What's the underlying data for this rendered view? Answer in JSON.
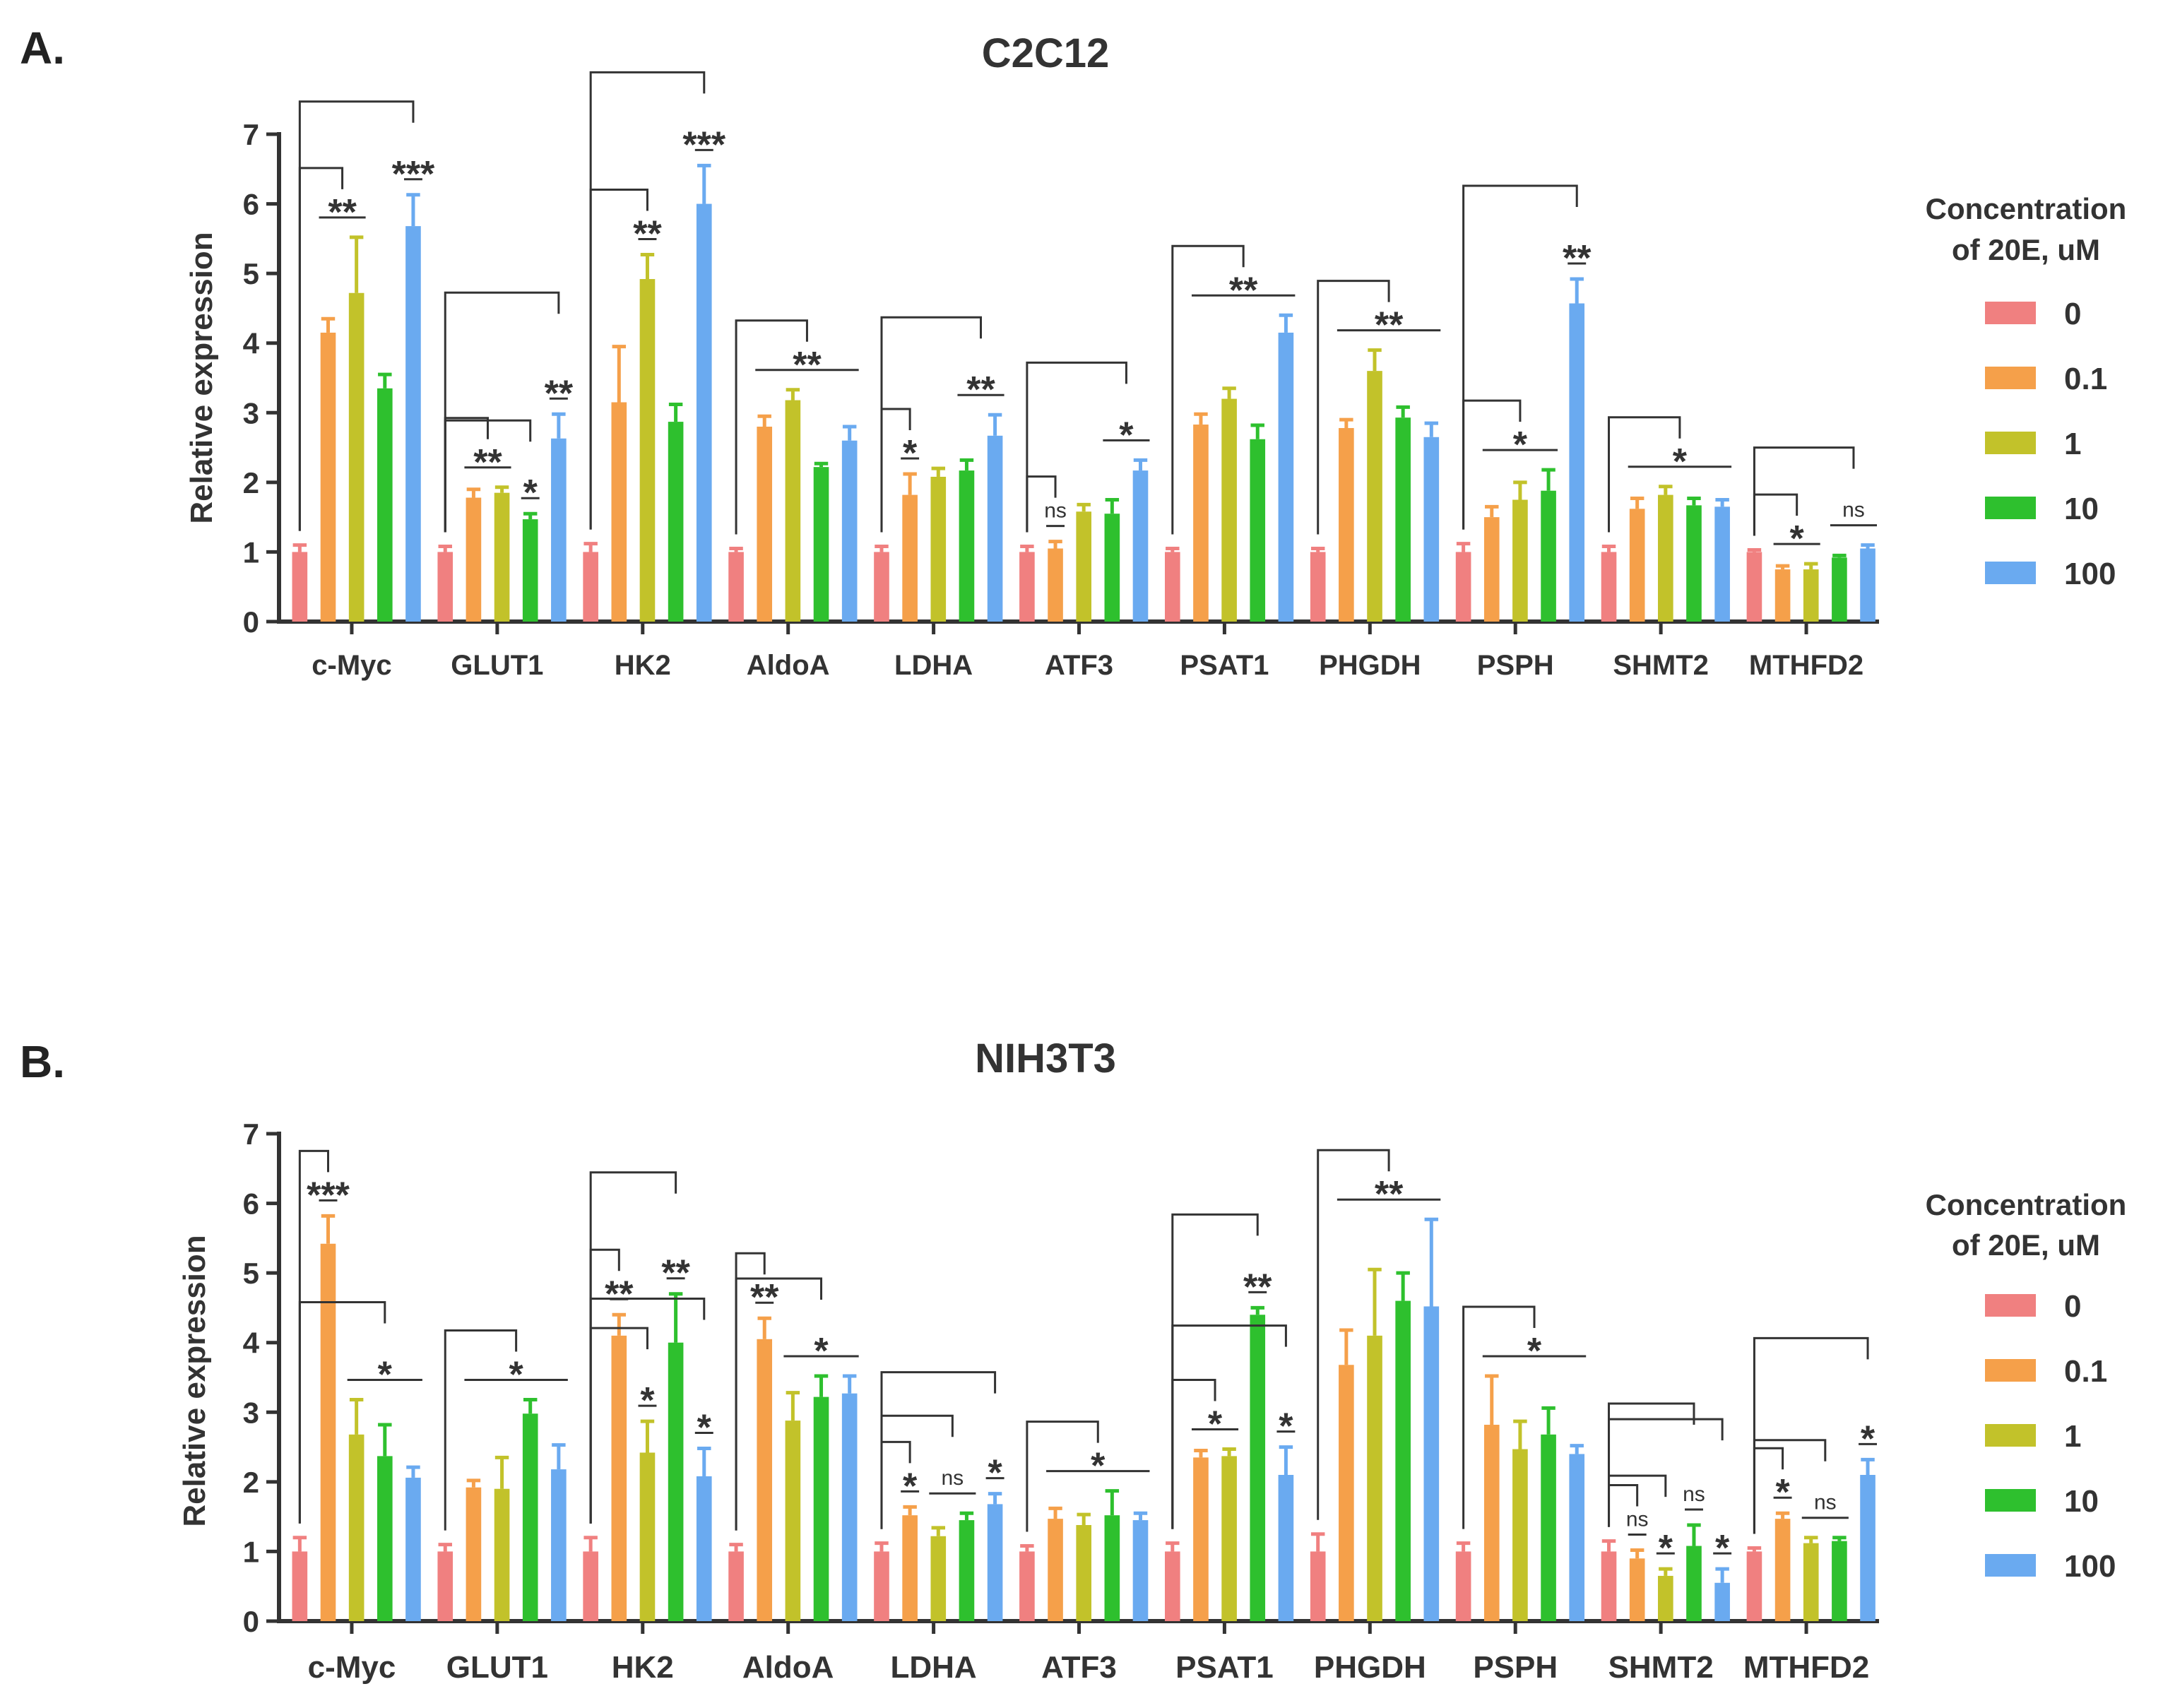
{
  "chart_data": [
    {
      "panel_label": "A.",
      "type": "bar",
      "title": "C2C12",
      "ylabel": "Relative expression",
      "xlabel": "",
      "ylim": [
        0,
        7
      ],
      "yticks": [
        "0",
        "1",
        "2",
        "3",
        "4",
        "5",
        "6",
        "7"
      ],
      "categories": [
        "c-Myc",
        "GLUT1",
        "HK2",
        "AldoA",
        "LDHA",
        "ATF3",
        "PSAT1",
        "PHGDH",
        "PSPH",
        "SHMT2",
        "MTHFD2"
      ],
      "legend": {
        "title_line1": "Concentration",
        "title_line2": "of 20E, uM",
        "placement": "right",
        "entries": [
          "0",
          "0.1",
          "1",
          "10",
          "100"
        ]
      },
      "series": [
        {
          "name": "0",
          "values": [
            1,
            1,
            1,
            1,
            1,
            1,
            1,
            1,
            1,
            1,
            1
          ],
          "errors": [
            0.1,
            0.08,
            0.12,
            0.05,
            0.08,
            0.08,
            0.05,
            0.05,
            0.12,
            0.08,
            0.03
          ]
        },
        {
          "name": "0.1",
          "values": [
            4.15,
            1.78,
            3.15,
            2.8,
            1.82,
            1.05,
            2.83,
            2.78,
            1.5,
            1.62,
            0.75
          ],
          "errors": [
            0.2,
            0.12,
            0.8,
            0.15,
            0.3,
            0.1,
            0.15,
            0.12,
            0.15,
            0.15,
            0.05
          ]
        },
        {
          "name": "1",
          "values": [
            4.72,
            1.85,
            4.92,
            3.18,
            2.08,
            1.58,
            3.2,
            3.6,
            1.75,
            1.82,
            0.75
          ],
          "errors": [
            0.8,
            0.08,
            0.35,
            0.15,
            0.12,
            0.1,
            0.15,
            0.3,
            0.25,
            0.12,
            0.08
          ]
        },
        {
          "name": "10",
          "values": [
            3.35,
            1.47,
            2.87,
            2.22,
            2.17,
            1.55,
            2.62,
            2.93,
            1.88,
            1.67,
            0.92
          ],
          "errors": [
            0.2,
            0.08,
            0.25,
            0.05,
            0.15,
            0.2,
            0.2,
            0.15,
            0.3,
            0.1,
            0.03
          ]
        },
        {
          "name": "100",
          "values": [
            5.68,
            2.63,
            6.0,
            2.6,
            2.67,
            2.17,
            4.15,
            2.65,
            4.57,
            1.65,
            1.05
          ],
          "errors": [
            0.45,
            0.35,
            0.55,
            0.2,
            0.3,
            0.15,
            0.25,
            0.2,
            0.35,
            0.1,
            0.05
          ]
        }
      ],
      "annotations": [
        {
          "category": "c-Myc",
          "label": "**",
          "compare": "0.1/1"
        },
        {
          "category": "c-Myc",
          "label": "***",
          "compare": "100"
        },
        {
          "category": "GLUT1",
          "label": "**",
          "compare": "0.1/1"
        },
        {
          "category": "GLUT1",
          "label": "*",
          "compare": "10"
        },
        {
          "category": "GLUT1",
          "label": "**",
          "compare": "100"
        },
        {
          "category": "HK2",
          "label": "**",
          "compare": "1"
        },
        {
          "category": "HK2",
          "label": "***",
          "compare": "100"
        },
        {
          "category": "AldoA",
          "label": "**",
          "compare": "all"
        },
        {
          "category": "LDHA",
          "label": "*",
          "compare": "0.1"
        },
        {
          "category": "LDHA",
          "label": "**",
          "compare": "10/100"
        },
        {
          "category": "ATF3",
          "label": "ns",
          "compare": "0.1"
        },
        {
          "category": "ATF3",
          "label": "*",
          "compare": "10/100"
        },
        {
          "category": "PSAT1",
          "label": "**",
          "compare": "all"
        },
        {
          "category": "PHGDH",
          "label": "**",
          "compare": "all"
        },
        {
          "category": "PSPH",
          "label": "*",
          "compare": "0.1-10"
        },
        {
          "category": "PSPH",
          "label": "**",
          "compare": "100"
        },
        {
          "category": "SHMT2",
          "label": "*",
          "compare": "all"
        },
        {
          "category": "MTHFD2",
          "label": "*",
          "compare": "0.1/1"
        },
        {
          "category": "MTHFD2",
          "label": "ns",
          "compare": "10/100"
        }
      ]
    },
    {
      "panel_label": "B.",
      "type": "bar",
      "title": "NIH3T3",
      "ylabel": "Relative expression",
      "xlabel": "",
      "ylim": [
        0,
        7
      ],
      "yticks": [
        "0",
        "1",
        "2",
        "3",
        "4",
        "5",
        "6",
        "7"
      ],
      "categories": [
        "c-Myc",
        "GLUT1",
        "HK2",
        "AldoA",
        "LDHA",
        "ATF3",
        "PSAT1",
        "PHGDH",
        "PSPH",
        "SHMT2",
        "MTHFD2"
      ],
      "legend": {
        "title_line1": "Concentration",
        "title_line2": "of 20E, uM",
        "placement": "right",
        "entries": [
          "0",
          "0.1",
          "1",
          "10",
          "100"
        ]
      },
      "series": [
        {
          "name": "0",
          "values": [
            1,
            1,
            1,
            1,
            1,
            1,
            1,
            1,
            1,
            1,
            1
          ],
          "errors": [
            0.2,
            0.1,
            0.2,
            0.1,
            0.12,
            0.08,
            0.12,
            0.25,
            0.12,
            0.15,
            0.05
          ]
        },
        {
          "name": "0.1",
          "values": [
            5.42,
            1.92,
            4.1,
            4.05,
            1.52,
            1.47,
            2.35,
            3.68,
            2.82,
            0.9,
            1.47
          ],
          "errors": [
            0.4,
            0.1,
            0.3,
            0.3,
            0.12,
            0.15,
            0.1,
            0.5,
            0.7,
            0.12,
            0.08
          ]
        },
        {
          "name": "1",
          "values": [
            2.68,
            1.9,
            2.42,
            2.88,
            1.22,
            1.38,
            2.37,
            4.1,
            2.47,
            0.65,
            1.12
          ],
          "errors": [
            0.5,
            0.45,
            0.45,
            0.4,
            0.12,
            0.15,
            0.1,
            0.95,
            0.4,
            0.1,
            0.08
          ]
        },
        {
          "name": "10",
          "values": [
            2.37,
            2.98,
            4.0,
            3.22,
            1.45,
            1.52,
            4.4,
            4.6,
            2.68,
            1.08,
            1.15
          ],
          "errors": [
            0.45,
            0.2,
            0.7,
            0.3,
            0.1,
            0.35,
            0.1,
            0.4,
            0.38,
            0.3,
            0.05
          ]
        },
        {
          "name": "100",
          "values": [
            2.06,
            2.18,
            2.08,
            3.27,
            1.68,
            1.45,
            2.1,
            4.52,
            2.4,
            0.55,
            2.1
          ],
          "errors": [
            0.15,
            0.35,
            0.4,
            0.25,
            0.15,
            0.1,
            0.4,
            1.25,
            0.12,
            0.2,
            0.22
          ]
        }
      ],
      "annotations": [
        {
          "category": "c-Myc",
          "label": "***",
          "compare": "0.1"
        },
        {
          "category": "c-Myc",
          "label": "*",
          "compare": "1-100"
        },
        {
          "category": "GLUT1",
          "label": "*",
          "compare": "all"
        },
        {
          "category": "HK2",
          "label": "**",
          "compare": "0.1"
        },
        {
          "category": "HK2",
          "label": "*",
          "compare": "1"
        },
        {
          "category": "HK2",
          "label": "**",
          "compare": "10"
        },
        {
          "category": "HK2",
          "label": "*",
          "compare": "100"
        },
        {
          "category": "AldoA",
          "label": "**",
          "compare": "0.1"
        },
        {
          "category": "AldoA",
          "label": "*",
          "compare": "1-100"
        },
        {
          "category": "LDHA",
          "label": "*",
          "compare": "0.1"
        },
        {
          "category": "LDHA",
          "label": "ns",
          "compare": "1/10"
        },
        {
          "category": "LDHA",
          "label": "*",
          "compare": "100"
        },
        {
          "category": "ATF3",
          "label": "*",
          "compare": "all"
        },
        {
          "category": "PSAT1",
          "label": "*",
          "compare": "0.1/1"
        },
        {
          "category": "PSAT1",
          "label": "**",
          "compare": "10"
        },
        {
          "category": "PSAT1",
          "label": "*",
          "compare": "100"
        },
        {
          "category": "PHGDH",
          "label": "**",
          "compare": "all"
        },
        {
          "category": "PSPH",
          "label": "*",
          "compare": "all"
        },
        {
          "category": "SHMT2",
          "label": "ns",
          "compare": "0.1"
        },
        {
          "category": "SHMT2",
          "label": "*",
          "compare": "1"
        },
        {
          "category": "SHMT2",
          "label": "ns",
          "compare": "10"
        },
        {
          "category": "SHMT2",
          "label": "*",
          "compare": "100"
        },
        {
          "category": "MTHFD2",
          "label": "*",
          "compare": "0.1"
        },
        {
          "category": "MTHFD2",
          "label": "ns",
          "compare": "1/10"
        },
        {
          "category": "MTHFD2",
          "label": "*",
          "compare": "100"
        }
      ]
    }
  ],
  "colors": {
    "0": "#f08080",
    "0.1": "#f5a04a",
    "1": "#c2c22a",
    "10": "#2ec02e",
    "100": "#6aaaf0",
    "axis": "#333333",
    "text": "#333333"
  }
}
